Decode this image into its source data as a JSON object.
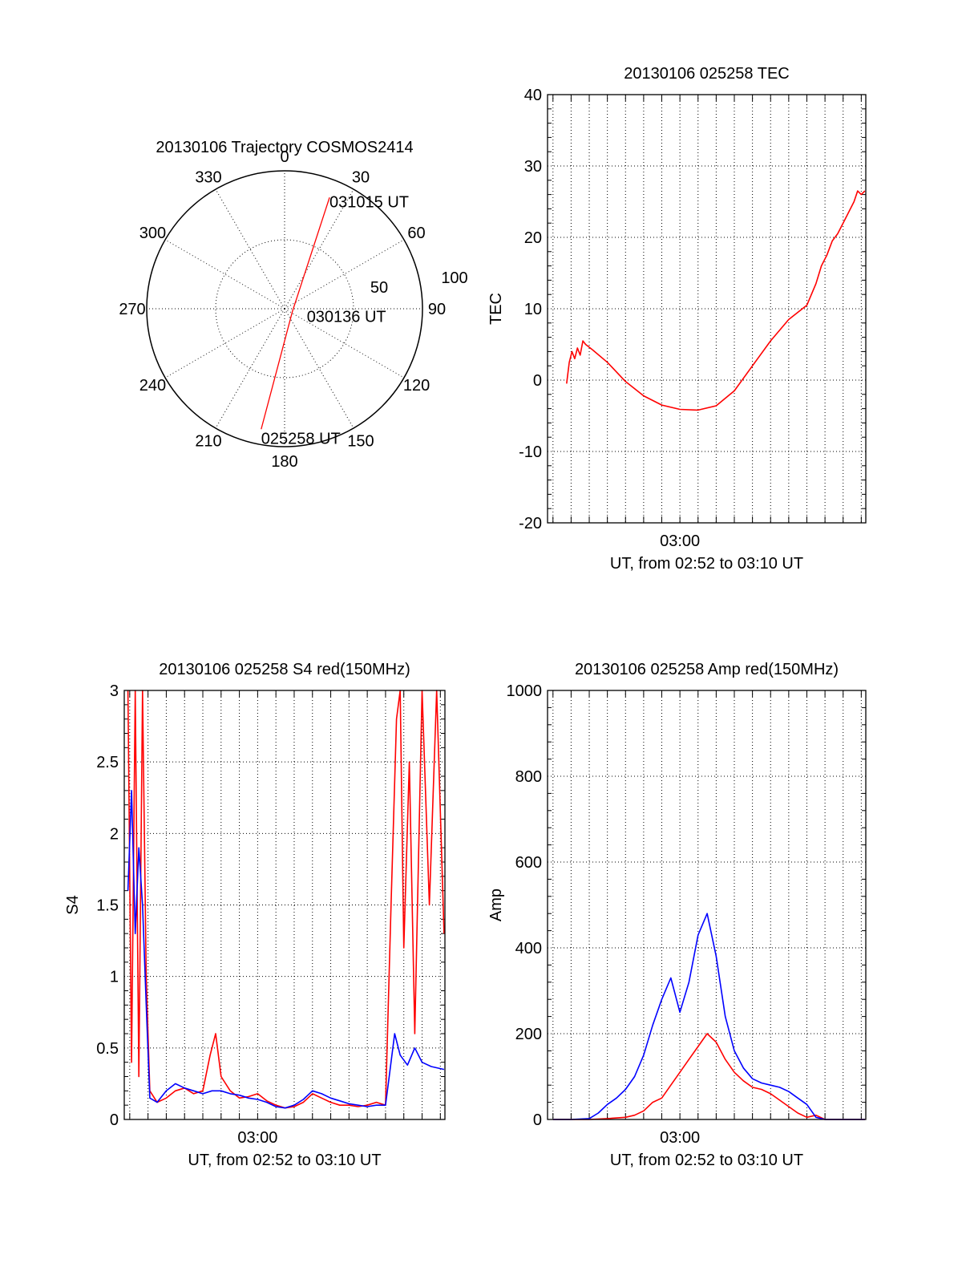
{
  "chart_data": [
    {
      "type": "polar",
      "title": "20130106 Trajectory COSMOS2414",
      "azimuth_labels": [
        "0",
        "30",
        "60",
        "90",
        "120",
        "150",
        "180",
        "210",
        "240",
        "270",
        "300",
        "330"
      ],
      "radial_labels": [
        "50",
        "100"
      ],
      "rlim": [
        0,
        100
      ],
      "grid": true,
      "series": [
        {
          "color": "#ff0000",
          "points": [
            {
              "az": 191,
              "r": 89,
              "label": "025258 UT"
            },
            {
              "az": 110,
              "r": 6,
              "label": "030136 UT"
            },
            {
              "az": 22,
              "r": 87,
              "label": "031015 UT"
            }
          ]
        }
      ]
    },
    {
      "type": "line",
      "title": "20130106 025258 TEC",
      "xlabel": "UT, from 02:52 to 03:10 UT",
      "ylabel": "TEC",
      "x_tick_label": "03:00",
      "xlim": [
        -7.3,
        10.25
      ],
      "ylim": [
        -20,
        40
      ],
      "yticks": [
        -20,
        -10,
        0,
        10,
        20,
        30,
        40
      ],
      "grid": true,
      "series": [
        {
          "color": "#ff0000",
          "x": [
            -6.25,
            -6.1,
            -5.95,
            -5.8,
            -5.65,
            -5.5,
            -5.35,
            -5.2,
            -5.1,
            -4.8,
            -4.0,
            -3.0,
            -2.0,
            -1.0,
            0.0,
            1.0,
            2.0,
            3.0,
            4.0,
            5.0,
            6.0,
            7.0,
            7.5,
            7.8,
            8.1,
            8.4,
            8.7,
            9.0,
            9.3,
            9.6,
            9.8,
            10.0,
            10.2
          ],
          "y": [
            -0.5,
            2.5,
            4.0,
            3.0,
            4.5,
            3.5,
            5.5,
            5.0,
            4.8,
            4.2,
            2.5,
            -0.2,
            -2.2,
            -3.5,
            -4.1,
            -4.2,
            -3.6,
            -1.5,
            2.0,
            5.5,
            8.5,
            10.5,
            13.5,
            16.0,
            17.5,
            19.5,
            20.5,
            22.0,
            23.5,
            25.0,
            26.5,
            26.0,
            26.5
          ]
        }
      ]
    },
    {
      "type": "line",
      "title": "20130106 025258 S4 red(150MHz)",
      "xlabel": "UT, from 02:52 to 03:10 UT",
      "ylabel": "S4",
      "x_tick_label": "03:00",
      "xlim": [
        -7.3,
        10.25
      ],
      "ylim": [
        0,
        3
      ],
      "yticks": [
        0,
        0.5,
        1,
        1.5,
        2,
        2.5,
        3
      ],
      "grid": true,
      "series": [
        {
          "color": "#ff0000",
          "x": [
            -7.1,
            -6.9,
            -6.7,
            -6.5,
            -6.3,
            -6.1,
            -5.9,
            -5.5,
            -5.0,
            -4.5,
            -4.0,
            -3.5,
            -3.0,
            -2.6,
            -2.3,
            -2.0,
            -1.5,
            -1.0,
            -0.5,
            0.0,
            0.5,
            1.0,
            1.5,
            2.0,
            2.5,
            3.0,
            3.5,
            4.0,
            4.5,
            5.0,
            5.5,
            6.0,
            6.5,
            7.0,
            7.3,
            7.6,
            7.8,
            8.0,
            8.3,
            8.6,
            9.0,
            9.4,
            9.8,
            10.2
          ],
          "y": [
            3.0,
            0.4,
            3.0,
            0.3,
            3.0,
            1.0,
            0.2,
            0.12,
            0.15,
            0.2,
            0.22,
            0.18,
            0.2,
            0.45,
            0.6,
            0.3,
            0.2,
            0.15,
            0.16,
            0.18,
            0.13,
            0.1,
            0.08,
            0.09,
            0.12,
            0.18,
            0.15,
            0.12,
            0.1,
            0.1,
            0.09,
            0.1,
            0.12,
            0.1,
            1.5,
            2.8,
            3.0,
            1.2,
            2.5,
            0.6,
            3.0,
            1.5,
            3.0,
            1.3
          ]
        },
        {
          "color": "#0000ff",
          "x": [
            -7.1,
            -6.9,
            -6.7,
            -6.5,
            -6.3,
            -6.1,
            -5.9,
            -5.5,
            -5.0,
            -4.5,
            -4.0,
            -3.5,
            -3.0,
            -2.5,
            -2.0,
            -1.5,
            -1.0,
            -0.5,
            0.0,
            0.5,
            1.0,
            1.5,
            2.0,
            2.5,
            3.0,
            3.5,
            4.0,
            4.5,
            5.0,
            5.5,
            6.0,
            6.5,
            7.0,
            7.2,
            7.5,
            7.8,
            8.2,
            8.6,
            9.0,
            9.5,
            10.2
          ],
          "y": [
            1.6,
            2.3,
            1.3,
            1.9,
            1.5,
            0.8,
            0.15,
            0.12,
            0.2,
            0.25,
            0.22,
            0.2,
            0.18,
            0.2,
            0.2,
            0.18,
            0.17,
            0.15,
            0.14,
            0.12,
            0.09,
            0.08,
            0.1,
            0.14,
            0.2,
            0.18,
            0.15,
            0.13,
            0.11,
            0.1,
            0.09,
            0.1,
            0.1,
            0.3,
            0.6,
            0.45,
            0.38,
            0.5,
            0.4,
            0.37,
            0.35
          ]
        }
      ]
    },
    {
      "type": "line",
      "title": "20130106 025258 Amp red(150MHz)",
      "xlabel": "UT, from 02:52 to 03:10 UT",
      "ylabel": "Amp",
      "x_tick_label": "03:00",
      "xlim": [
        -7.3,
        10.25
      ],
      "ylim": [
        0,
        1000
      ],
      "yticks": [
        0,
        200,
        400,
        600,
        800,
        1000
      ],
      "grid": true,
      "series": [
        {
          "color": "#ff0000",
          "x": [
            -7.0,
            -6.0,
            -5.0,
            -4.0,
            -3.0,
            -2.5,
            -2.0,
            -1.5,
            -1.0,
            -0.5,
            0.0,
            0.5,
            1.0,
            1.5,
            2.0,
            2.5,
            3.0,
            3.5,
            4.0,
            4.5,
            5.0,
            5.5,
            6.0,
            6.5,
            7.0,
            7.5,
            8.0,
            9.0,
            10.2
          ],
          "y": [
            0,
            0,
            0,
            2,
            5,
            10,
            20,
            40,
            50,
            80,
            110,
            140,
            170,
            200,
            180,
            140,
            110,
            90,
            75,
            70,
            60,
            45,
            30,
            15,
            5,
            10,
            0,
            0,
            0
          ]
        },
        {
          "color": "#0000ff",
          "x": [
            -7.0,
            -6.0,
            -5.0,
            -4.5,
            -4.0,
            -3.5,
            -3.0,
            -2.5,
            -2.0,
            -1.5,
            -1.0,
            -0.5,
            0.0,
            0.5,
            1.0,
            1.5,
            2.0,
            2.5,
            3.0,
            3.5,
            4.0,
            4.5,
            5.0,
            5.5,
            6.0,
            6.5,
            7.0,
            7.5,
            8.0,
            9.0,
            10.2
          ],
          "y": [
            0,
            0,
            2,
            15,
            35,
            50,
            70,
            100,
            150,
            220,
            280,
            330,
            250,
            320,
            430,
            480,
            380,
            240,
            160,
            120,
            95,
            85,
            80,
            75,
            65,
            50,
            35,
            5,
            0,
            0,
            0
          ]
        }
      ]
    }
  ]
}
